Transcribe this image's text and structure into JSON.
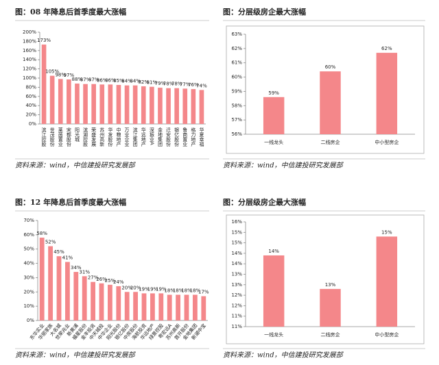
{
  "chart_data": [
    {
      "type": "bar",
      "title": "图：08 年降息后首季度最大涨幅",
      "source": "资料来源：wind，中信建投研究发展部",
      "color": "#f4878a",
      "categories": [
        "滨江控股",
        "世茂股份",
        "莱茵置业",
        "宋都股份",
        "阳光城",
        "滨湖控股",
        "荣盛发展",
        "苏州高新",
        "华发股份",
        "中粮地产",
        "万业企业",
        "滨江集团",
        "华远地产",
        "深振业A",
        "金地集团",
        "迁安股份",
        "银亿股份",
        "鲁商置业",
        "格力地产",
        "华夏幸福"
      ],
      "values": [
        173,
        105,
        98,
        97,
        88,
        87,
        87,
        86,
        86,
        85,
        84,
        84,
        82,
        81,
        79,
        78,
        78,
        77,
        76,
        74
      ],
      "value_labels": [
        "173%",
        "105%",
        "98%",
        "97%",
        "88%",
        "87%",
        "87%",
        "86%",
        "86%",
        "85%",
        "84%",
        "84%",
        "82%",
        "81%",
        "79%",
        "78%",
        "78%",
        "77%",
        "76%",
        "74%"
      ],
      "ylim": [
        0,
        200
      ],
      "yticks": [
        {
          "value": 0,
          "label": "0%"
        },
        {
          "value": 20,
          "label": "20%"
        },
        {
          "value": 40,
          "label": "40%"
        },
        {
          "value": 60,
          "label": "60%"
        },
        {
          "value": 80,
          "label": "80%"
        },
        {
          "value": 100,
          "label": "100%"
        },
        {
          "value": 120,
          "label": "120%"
        },
        {
          "value": 140,
          "label": "140%"
        },
        {
          "value": 160,
          "label": "160%"
        },
        {
          "value": 180,
          "label": "180%"
        },
        {
          "value": 200,
          "label": "200%"
        }
      ]
    },
    {
      "type": "bar",
      "title": "图：分层级房企最大涨幅",
      "source": "资料来源：wind，中信建投研究发展部",
      "color": "#f4878a",
      "categories": [
        "一线龙头",
        "二线房企",
        "中小型房企"
      ],
      "values": [
        58.6,
        60.4,
        61.7
      ],
      "value_labels": [
        "59%",
        "60%",
        "62%"
      ],
      "ylim": [
        56,
        63
      ],
      "yticks": [
        {
          "value": 56,
          "label": "56%"
        },
        {
          "value": 57,
          "label": "57%"
        },
        {
          "value": 58,
          "label": "58%"
        },
        {
          "value": 59,
          "label": "59%"
        },
        {
          "value": 60,
          "label": "60%"
        },
        {
          "value": 61,
          "label": "61%"
        },
        {
          "value": 62,
          "label": "62%"
        },
        {
          "value": 63,
          "label": "63%"
        }
      ]
    },
    {
      "type": "bar",
      "title": "图：12 年降息后首季度最大涨幅",
      "source": "资料来源：wind，中信建投研究发展部",
      "color": "#f4878a",
      "categories": [
        "东华实业",
        "华丽家族",
        "大名城",
        "世荣兆业",
        "新黄浦",
        "福星股份",
        "金丰投资",
        "中天城投",
        "中华企业",
        "阳光股份",
        "银亿股份",
        "中房股份",
        "海航投资",
        "华远地产",
        "绿景控股",
        "粤宏远A",
        "苏州高新",
        "首开股份",
        "金地集团",
        "新湖中宝"
      ],
      "values": [
        58,
        52,
        45,
        41,
        34,
        31,
        27,
        26,
        25,
        24,
        20,
        20,
        19,
        19,
        19,
        18,
        18,
        18,
        18,
        17
      ],
      "value_labels": [
        "58%",
        "52%",
        "45%",
        "41%",
        "34%",
        "31%",
        "27%",
        "26%",
        "25%",
        "24%",
        "20%",
        "20%",
        "19%",
        "19%",
        "19%",
        "18%",
        "18%",
        "18%",
        "18%",
        "17%"
      ],
      "ylim": [
        0,
        70
      ],
      "yticks": [
        {
          "value": 0,
          "label": "0%"
        },
        {
          "value": 10,
          "label": "10%"
        },
        {
          "value": 20,
          "label": "20%"
        },
        {
          "value": 30,
          "label": "30%"
        },
        {
          "value": 40,
          "label": "40%"
        },
        {
          "value": 50,
          "label": "50%"
        },
        {
          "value": 60,
          "label": "60%"
        },
        {
          "value": 70,
          "label": "70%"
        }
      ]
    },
    {
      "type": "bar",
      "title": "图：分层级房企最大涨幅",
      "source": "资料来源：wind，中信建投研究发展部",
      "color": "#f4878a",
      "categories": [
        "一线龙头",
        "二线房企",
        "中小型房企"
      ],
      "values": [
        14.4,
        12.8,
        15.3
      ],
      "value_labels": [
        "14%",
        "13%",
        "15%"
      ],
      "ylim": [
        11,
        16
      ],
      "yticks": [
        {
          "value": 11,
          "label": "11%"
        },
        {
          "value": 11.5,
          "label": "11%"
        },
        {
          "value": 12,
          "label": "12%"
        },
        {
          "value": 12.5,
          "label": "12%"
        },
        {
          "value": 13,
          "label": "13%"
        },
        {
          "value": 13.5,
          "label": "13%"
        },
        {
          "value": 14,
          "label": "14%"
        },
        {
          "value": 14.5,
          "label": "14%"
        },
        {
          "value": 15,
          "label": "15%"
        },
        {
          "value": 15.5,
          "label": "15%"
        },
        {
          "value": 16,
          "label": "16%"
        }
      ]
    }
  ]
}
